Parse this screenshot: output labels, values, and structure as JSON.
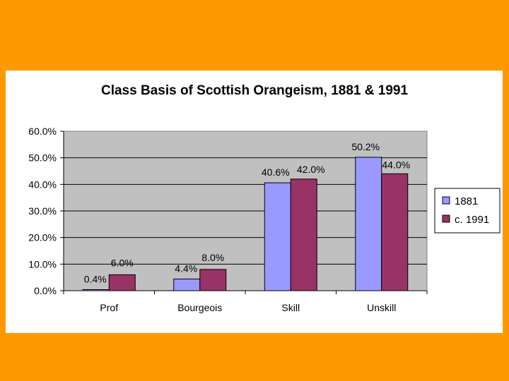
{
  "page": {
    "background_color": "#FF9900"
  },
  "chart_data": {
    "type": "bar",
    "title": "Class Basis of Scottish Orangeism, 1881 & 1991",
    "categories": [
      "Prof",
      "Bourgeois",
      "Skill",
      "Unskill"
    ],
    "series": [
      {
        "name": "1881",
        "values": [
          0.4,
          4.4,
          40.6,
          50.2
        ],
        "labels": [
          "0.4%",
          "4.4%",
          "40.6%",
          "50.2%"
        ],
        "color": "#9999FF"
      },
      {
        "name": "c. 1991",
        "values": [
          6.0,
          8.0,
          42.0,
          44.0
        ],
        "labels": [
          "6.0%",
          "8.0%",
          "42.0%",
          "44.0%"
        ],
        "color": "#993366"
      }
    ],
    "ylim": [
      0,
      60
    ],
    "y_ticks": [
      "0.0%",
      "10.0%",
      "20.0%",
      "30.0%",
      "40.0%",
      "50.0%",
      "60.0%"
    ],
    "xlabel": "",
    "ylabel": "",
    "grid": true,
    "plot_background": "#C0C0C0",
    "legend_position": "right"
  }
}
